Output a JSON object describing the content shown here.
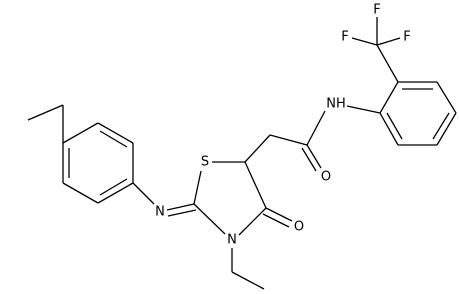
{
  "atoms": {
    "f_top": "F",
    "f_left": "F",
    "f_right": "F",
    "amide_nh": "NH",
    "amide_o": "O",
    "ring_s": "S",
    "imine_n": "N",
    "ring_n": "N",
    "ring_o": "O"
  }
}
